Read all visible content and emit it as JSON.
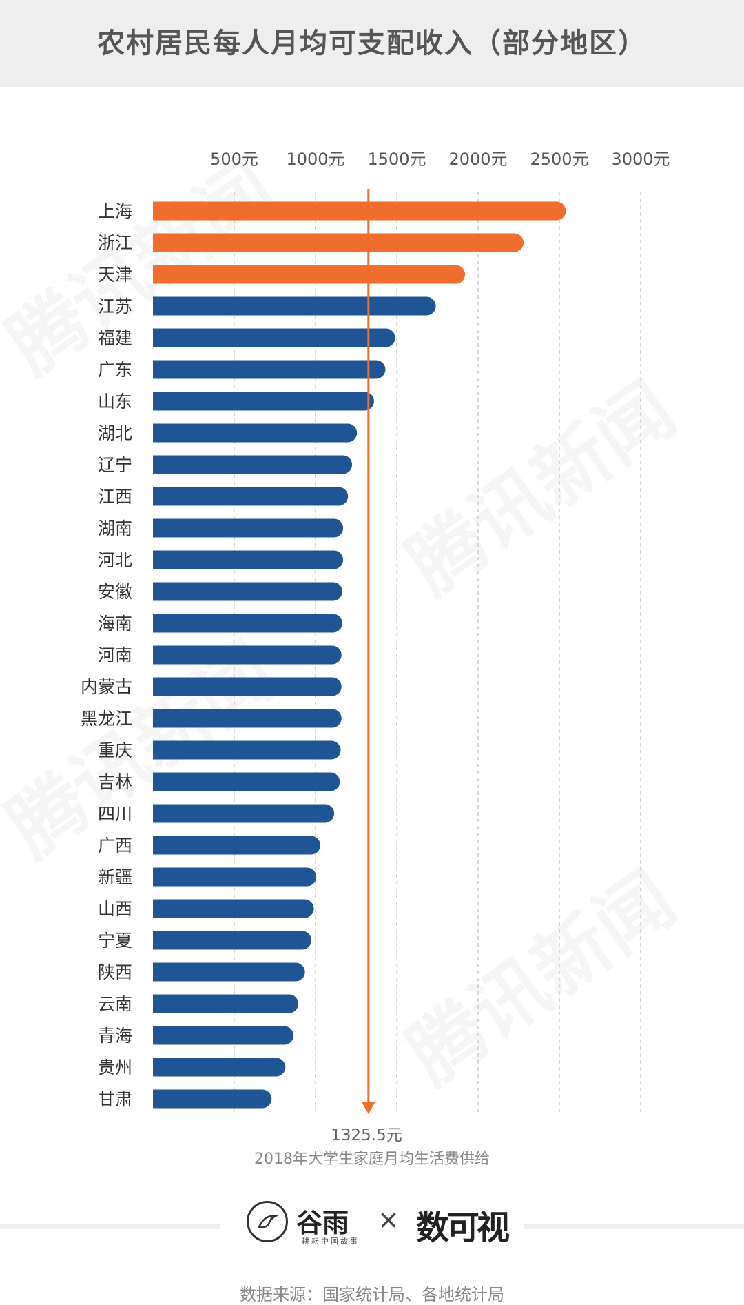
{
  "title": "农村居民每人月均可支配收入（部分地区）",
  "chart_data": {
    "type": "bar",
    "orientation": "horizontal",
    "title": "农村居民每人月均可支配收入（部分地区）",
    "xlim": [
      0,
      3000
    ],
    "xticks": [
      500,
      1000,
      1500,
      2000,
      2500,
      3000
    ],
    "tick_labels": [
      "500元",
      "1000元",
      "1500元",
      "2000元",
      "2500元",
      "3000元"
    ],
    "grid": true,
    "categories": [
      "上海",
      "浙江",
      "天津",
      "江苏",
      "福建",
      "广东",
      "山东",
      "湖北",
      "辽宁",
      "江西",
      "湖南",
      "河北",
      "安徽",
      "海南",
      "河南",
      "内蒙古",
      "黑龙江",
      "重庆",
      "吉林",
      "四川",
      "广西",
      "新疆",
      "山西",
      "宁夏",
      "陕西",
      "云南",
      "青海",
      "贵州",
      "甘肃"
    ],
    "values": [
      2540,
      2280,
      1920,
      1740,
      1490,
      1430,
      1360,
      1255,
      1225,
      1200,
      1170,
      1170,
      1165,
      1165,
      1160,
      1160,
      1160,
      1155,
      1150,
      1115,
      1030,
      1005,
      990,
      975,
      935,
      895,
      865,
      815,
      730
    ],
    "highlight_count": 3,
    "colors": {
      "highlight": "#f06d2e",
      "default": "#1f5594",
      "reference": "#f06d2e",
      "grid": "#cccccc"
    },
    "reference": {
      "value": 1325.5,
      "value_label": "1325.5元",
      "label": "2018年大学生家庭月均生活费供给"
    }
  },
  "logos": {
    "brand1": "谷雨",
    "brand1_sub": "耕耘中国故事",
    "separator": "×",
    "brand2": "数可视"
  },
  "source": "数据来源：国家统计局、各地统计局",
  "watermark": "腾讯新闻"
}
